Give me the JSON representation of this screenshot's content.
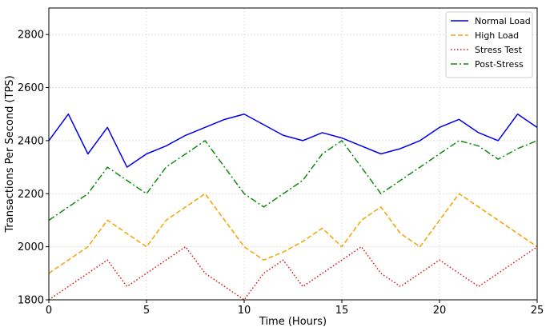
{
  "chart_data": {
    "type": "line",
    "title": "",
    "xlabel": "Time (Hours)",
    "ylabel": "Transactions Per Second (TPS)",
    "xlim": [
      0,
      25
    ],
    "ylim": [
      1800,
      2900
    ],
    "xticks": [
      0,
      5,
      10,
      15,
      20,
      25
    ],
    "yticks": [
      1800,
      2000,
      2200,
      2400,
      2600,
      2800
    ],
    "grid": true,
    "legend_position": "top-right",
    "x": [
      0,
      1,
      2,
      3,
      4,
      5,
      6,
      7,
      8,
      9,
      10,
      11,
      12,
      13,
      14,
      15,
      16,
      17,
      18,
      19,
      20,
      21,
      22,
      23,
      24,
      25
    ],
    "series": [
      {
        "name": "Normal Load",
        "color": "#0000ee",
        "style": "solid",
        "values": [
          2400,
          2500,
          2350,
          2450,
          2300,
          2350,
          2380,
          2420,
          2450,
          2480,
          2500,
          2460,
          2420,
          2400,
          2430,
          2410,
          2380,
          2350,
          2370,
          2400,
          2450,
          2480,
          2430,
          2400,
          2500,
          2450
        ]
      },
      {
        "name": "High Load",
        "color": "#f5a300",
        "style": "dashed",
        "values": [
          1900,
          1950,
          2000,
          2100,
          2050,
          2000,
          2100,
          2150,
          2200,
          2100,
          2000,
          1950,
          1980,
          2020,
          2070,
          2000,
          2100,
          2150,
          2050,
          2000,
          2100,
          2200,
          2150,
          2100,
          2050,
          2000
        ]
      },
      {
        "name": "Stress Test",
        "color": "#dd1111",
        "style": "dotted",
        "values": [
          1800,
          1850,
          1900,
          1950,
          1850,
          1900,
          1950,
          2000,
          1900,
          1850,
          1800,
          1900,
          1950,
          1850,
          1900,
          1950,
          2000,
          1900,
          1850,
          1900,
          1950,
          1900,
          1850,
          1900,
          1950,
          2000
        ]
      },
      {
        "name": "Post-Stress",
        "color": "#128a12",
        "style": "dashdot",
        "values": [
          2100,
          2150,
          2200,
          2300,
          2250,
          2200,
          2300,
          2350,
          2400,
          2300,
          2200,
          2150,
          2200,
          2250,
          2350,
          2400,
          2300,
          2200,
          2250,
          2300,
          2350,
          2400,
          2380,
          2330,
          2370,
          2400
        ]
      }
    ]
  }
}
